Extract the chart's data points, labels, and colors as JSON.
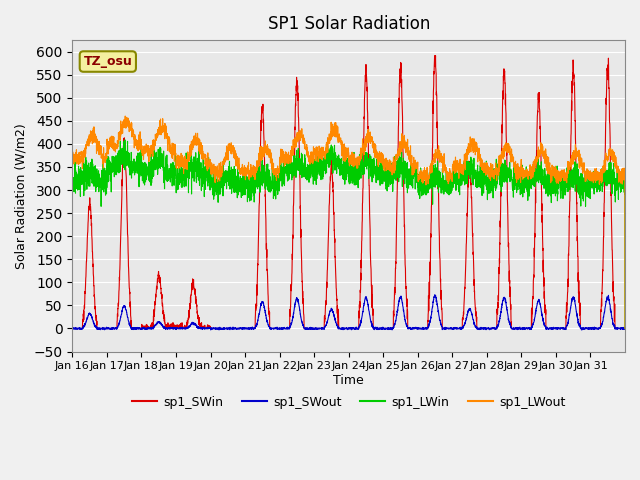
{
  "title": "SP1 Solar Radiation",
  "xlabel": "Time",
  "ylabel": "Solar Radiation (W/m2)",
  "ylim": [
    -50,
    625
  ],
  "yticks": [
    -50,
    0,
    50,
    100,
    150,
    200,
    250,
    300,
    350,
    400,
    450,
    500,
    550,
    600
  ],
  "xtick_labels": [
    "Jan 16",
    "Jan 17",
    "Jan 18",
    "Jan 19",
    "Jan 20",
    "Jan 21",
    "Jan 22",
    "Jan 23",
    "Jan 24",
    "Jan 25",
    "Jan 26",
    "Jan 27",
    "Jan 28",
    "Jan 29",
    "Jan 30",
    "Jan 31"
  ],
  "colors": {
    "sp1_SWin": "#dd0000",
    "sp1_SWout": "#0000cc",
    "sp1_LWin": "#00cc00",
    "sp1_LWout": "#ff8800"
  },
  "legend_labels": [
    "sp1_SWin",
    "sp1_SWout",
    "sp1_LWin",
    "sp1_LWout"
  ],
  "tz_label": "TZ_osu",
  "fig_bg_color": "#f0f0f0",
  "plot_bg_color": "#e8e8e8",
  "n_points": 3600,
  "days": 16
}
